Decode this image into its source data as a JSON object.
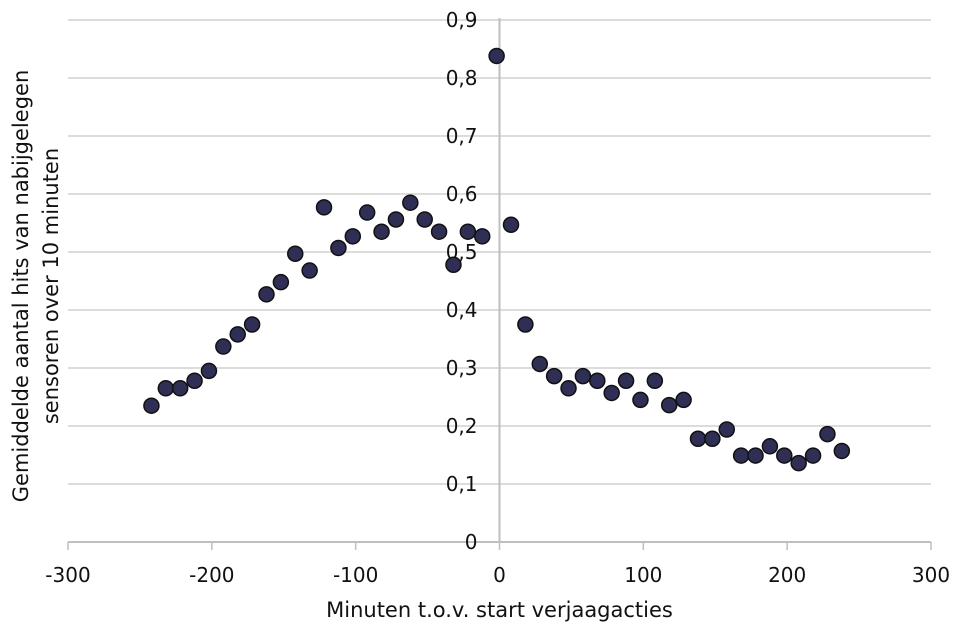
{
  "chart_data": {
    "type": "scatter",
    "title": "",
    "xlabel": "Minuten t.o.v. start verjaagacties",
    "ylabel_lines": [
      "Gemiddelde aantal hits van nabijgelegen",
      "sensoren over 10 minuten"
    ],
    "xlim": [
      -300,
      300
    ],
    "ylim": [
      0,
      0.9
    ],
    "x_ticks": [
      -300,
      -200,
      -100,
      0,
      100,
      200,
      300
    ],
    "x_tick_labels": [
      "-300",
      "-200",
      "-100",
      "0",
      "100",
      "200",
      "300"
    ],
    "y_ticks": [
      0,
      0.1,
      0.2,
      0.3,
      0.4,
      0.5,
      0.6,
      0.7,
      0.8,
      0.9
    ],
    "y_tick_labels": [
      "0",
      "0,1",
      "0,2",
      "0,3",
      "0,4",
      "0,5",
      "0,6",
      "0,7",
      "0,8",
      "0,9"
    ],
    "grid": "horizontal",
    "legend": "none",
    "colors": {
      "marker_fill": "#2f2f55",
      "marker_edge": "#111111",
      "grid": "#d0d0d0",
      "axis": "#bfbfbf"
    },
    "series": [
      {
        "points": [
          [
            -242,
            0.235
          ],
          [
            -232,
            0.265
          ],
          [
            -222,
            0.265
          ],
          [
            -212,
            0.278
          ],
          [
            -202,
            0.295
          ],
          [
            -192,
            0.337
          ],
          [
            -182,
            0.358
          ],
          [
            -172,
            0.375
          ],
          [
            -162,
            0.427
          ],
          [
            -152,
            0.448
          ],
          [
            -142,
            0.497
          ],
          [
            -132,
            0.468
          ],
          [
            -122,
            0.577
          ],
          [
            -112,
            0.507
          ],
          [
            -102,
            0.527
          ],
          [
            -92,
            0.568
          ],
          [
            -82,
            0.535
          ],
          [
            -72,
            0.556
          ],
          [
            -62,
            0.585
          ],
          [
            -52,
            0.556
          ],
          [
            -42,
            0.535
          ],
          [
            -32,
            0.478
          ],
          [
            -22,
            0.535
          ],
          [
            -12,
            0.527
          ],
          [
            -2,
            0.838
          ],
          [
            8,
            0.547
          ],
          [
            18,
            0.375
          ],
          [
            28,
            0.307
          ],
          [
            38,
            0.286
          ],
          [
            48,
            0.265
          ],
          [
            58,
            0.286
          ],
          [
            68,
            0.278
          ],
          [
            78,
            0.257
          ],
          [
            88,
            0.278
          ],
          [
            98,
            0.245
          ],
          [
            108,
            0.278
          ],
          [
            118,
            0.236
          ],
          [
            128,
            0.245
          ],
          [
            138,
            0.178
          ],
          [
            148,
            0.178
          ],
          [
            158,
            0.194
          ],
          [
            168,
            0.149
          ],
          [
            178,
            0.149
          ],
          [
            188,
            0.165
          ],
          [
            198,
            0.149
          ],
          [
            208,
            0.136
          ],
          [
            218,
            0.149
          ],
          [
            228,
            0.186
          ],
          [
            238,
            0.157
          ]
        ]
      }
    ]
  }
}
